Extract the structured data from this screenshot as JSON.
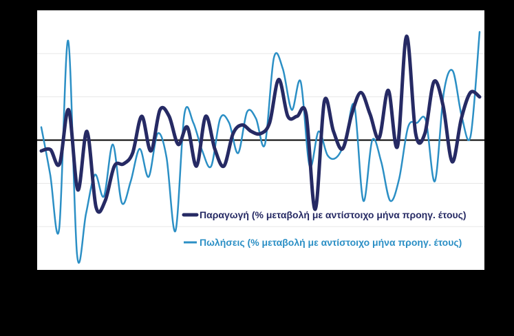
{
  "chart_data": {
    "type": "line",
    "title": "",
    "xlabel": "",
    "ylabel": "",
    "ylim": [
      -30,
      30
    ],
    "grid": true,
    "zero_line": true,
    "legend_position": "bottom-right-inside",
    "colors": {
      "background": "#000000",
      "plot_background": "#ffffff",
      "grid": "#e6e6e6",
      "zero_line": "#000000",
      "production": "#262a64",
      "sales": "#2b8fc5"
    },
    "series": [
      {
        "name": "Παραγωγή (% μεταβολή με αντίστοιχο μήνα προηγ. έτους)",
        "line_width": 5,
        "values": [
          -2.5,
          -2.2,
          -5.5,
          7.0,
          -11.5,
          2.0,
          -15.5,
          -14.0,
          -6.0,
          -5.5,
          -3.0,
          5.5,
          -2.5,
          7.0,
          5.5,
          -1.0,
          3.0,
          -6.0,
          5.5,
          -2.0,
          -6.0,
          1.5,
          3.5,
          2.0,
          1.5,
          4.0,
          14.0,
          5.5,
          5.5,
          6.0,
          -16.0,
          9.0,
          2.0,
          -2.0,
          6.0,
          11.0,
          6.0,
          0.5,
          11.5,
          -1.5,
          24.0,
          1.5,
          1.5,
          13.5,
          8.0,
          -5.0,
          5.0,
          11.0,
          10.0
        ]
      },
      {
        "name": "Πωλήσεις (% μεταβολή με αντίστοιχο μήνα προηγ. έτους)",
        "line_width": 2.5,
        "values": [
          3.0,
          -8.0,
          -20.5,
          23.0,
          -26.5,
          -17.0,
          -8.0,
          -13.0,
          -1.0,
          -14.5,
          -9.5,
          -2.0,
          -8.5,
          1.5,
          -4.0,
          -21.0,
          6.0,
          4.0,
          -2.5,
          -6.0,
          5.0,
          4.0,
          -3.0,
          6.5,
          5.0,
          -1.0,
          19.0,
          16.5,
          7.0,
          13.5,
          -6.0,
          2.0,
          -3.5,
          -4.0,
          0.0,
          8.0,
          -14.0,
          0.0,
          -5.0,
          -14.0,
          -9.0,
          3.0,
          4.0,
          4.5,
          -9.5,
          11.0,
          16.0,
          5.5,
          1.0,
          25.0
        ]
      }
    ]
  }
}
